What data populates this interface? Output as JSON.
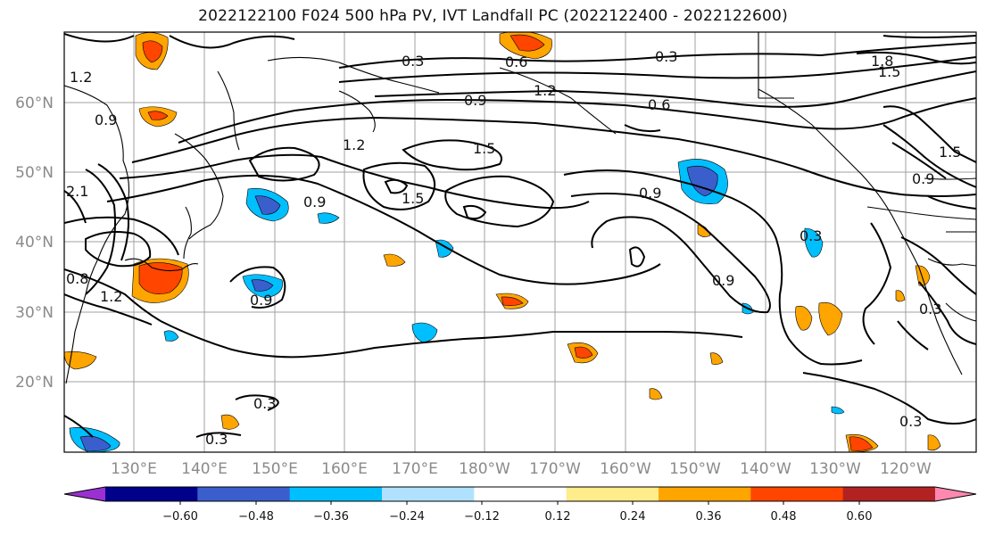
{
  "title": "2022122100 F024 500 hPa PV, IVT Landfall PC (2022122400 - 2022122600)",
  "map": {
    "latitude_labels": [
      "60°N",
      "50°N",
      "40°N",
      "30°N",
      "20°N"
    ],
    "longitude_labels": [
      "130°E",
      "140°E",
      "150°E",
      "160°E",
      "170°E",
      "180°W",
      "170°W",
      "160°W",
      "150°W",
      "140°W",
      "130°W",
      "120°W"
    ],
    "contour_labels": [
      "0.3",
      "0.6",
      "0.3",
      "1.2",
      "0.9",
      "0.6",
      "1.8",
      "1.5",
      "1.2",
      "0.9",
      "1.5",
      "0.9",
      "1.5",
      "0.9",
      "1.5",
      "0.3",
      "0.9",
      "0.3",
      "0.3",
      "0.3",
      "0.3",
      "0.9",
      "1.2",
      "0.8",
      "2.1",
      "0.9",
      "1.2"
    ],
    "colors": {
      "coast": "#000000",
      "grid": "#a0a0a0",
      "contour": "#000000"
    }
  },
  "colorbar": {
    "tick_labels": [
      "−0.60",
      "−0.48",
      "−0.36",
      "−0.24",
      "−0.12",
      "0.12",
      "0.24",
      "0.36",
      "0.48",
      "0.60"
    ],
    "colors": [
      "#9b30d0",
      "#00008b",
      "#3a5fcd",
      "#00bfff",
      "#b0e2ff",
      "#ffffff",
      "#ffec8b",
      "#ffa500",
      "#ff4500",
      "#b22222",
      "#ff88b0"
    ]
  }
}
